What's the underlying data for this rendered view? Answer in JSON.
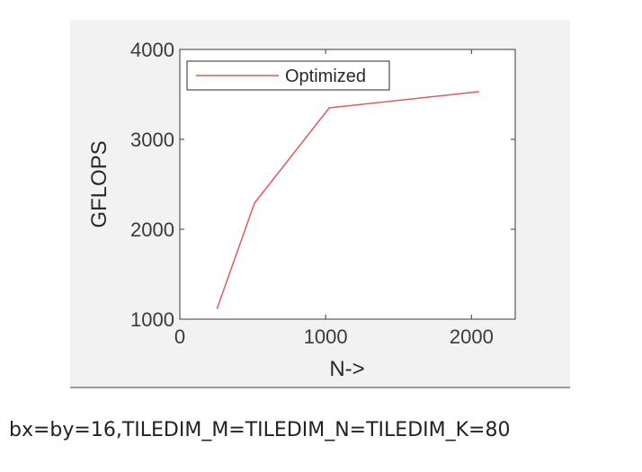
{
  "chart_data": {
    "type": "line",
    "title": "",
    "xlabel": "N->",
    "ylabel": "GFLOPS",
    "xlim": [
      0,
      2300
    ],
    "ylim": [
      1000,
      4000
    ],
    "xticks": [
      "0",
      "1000",
      "2000"
    ],
    "yticks": [
      "1000",
      "2000",
      "3000",
      "4000"
    ],
    "grid": false,
    "legend": "top-left",
    "series": [
      {
        "name": "Optimized",
        "color": "#e8585a",
        "x": [
          256,
          512,
          1024,
          2048
        ],
        "y": [
          1120,
          2290,
          3350,
          3530
        ]
      }
    ]
  },
  "caption": "bx=by=16,TILEDIM_M=TILEDIM_N=TILEDIM_K=80"
}
